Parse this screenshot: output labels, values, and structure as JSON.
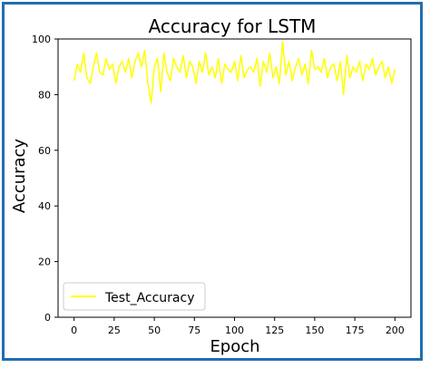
{
  "chart_data": {
    "type": "line",
    "title": "Accuracy for LSTM",
    "xlabel": "Epoch",
    "ylabel": "Accuracy",
    "xlim": [
      -10,
      210
    ],
    "ylim": [
      0,
      100
    ],
    "xticks": [
      0,
      25,
      50,
      75,
      100,
      125,
      150,
      175,
      200
    ],
    "yticks": [
      0,
      20,
      40,
      60,
      80,
      100
    ],
    "grid": false,
    "legend_position": "lower-left",
    "series": [
      {
        "name": "Test_Accuracy",
        "color": "#ffff00",
        "x": [
          0,
          2,
          4,
          6,
          8,
          10,
          12,
          14,
          16,
          18,
          20,
          22,
          24,
          26,
          28,
          30,
          32,
          34,
          36,
          38,
          40,
          42,
          44,
          46,
          48,
          50,
          52,
          54,
          56,
          58,
          60,
          62,
          64,
          66,
          68,
          70,
          72,
          74,
          76,
          78,
          80,
          82,
          84,
          86,
          88,
          90,
          92,
          94,
          96,
          98,
          100,
          102,
          104,
          106,
          108,
          110,
          112,
          114,
          116,
          118,
          120,
          122,
          124,
          126,
          128,
          130,
          132,
          134,
          136,
          138,
          140,
          142,
          144,
          146,
          148,
          150,
          152,
          154,
          156,
          158,
          160,
          162,
          164,
          166,
          168,
          170,
          172,
          174,
          176,
          178,
          180,
          182,
          184,
          186,
          188,
          190,
          192,
          194,
          196,
          198,
          200
        ],
        "values": [
          85,
          91,
          88,
          95,
          86,
          84,
          90,
          95,
          88,
          87,
          93,
          89,
          91,
          84,
          90,
          92,
          88,
          93,
          86,
          92,
          95,
          90,
          96,
          84,
          77,
          90,
          93,
          81,
          95,
          88,
          85,
          93,
          90,
          88,
          94,
          86,
          92,
          90,
          84,
          92,
          88,
          95,
          87,
          90,
          86,
          93,
          84,
          91,
          89,
          88,
          92,
          85,
          94,
          86,
          89,
          90,
          88,
          93,
          83,
          92,
          88,
          95,
          86,
          90,
          84,
          99,
          87,
          92,
          85,
          90,
          93,
          87,
          91,
          84,
          96,
          89,
          90,
          88,
          93,
          86,
          90,
          91,
          85,
          92,
          80,
          94,
          86,
          90,
          88,
          92,
          85,
          91,
          89,
          93,
          87,
          90,
          92,
          86,
          90,
          84,
          89
        ]
      }
    ]
  }
}
